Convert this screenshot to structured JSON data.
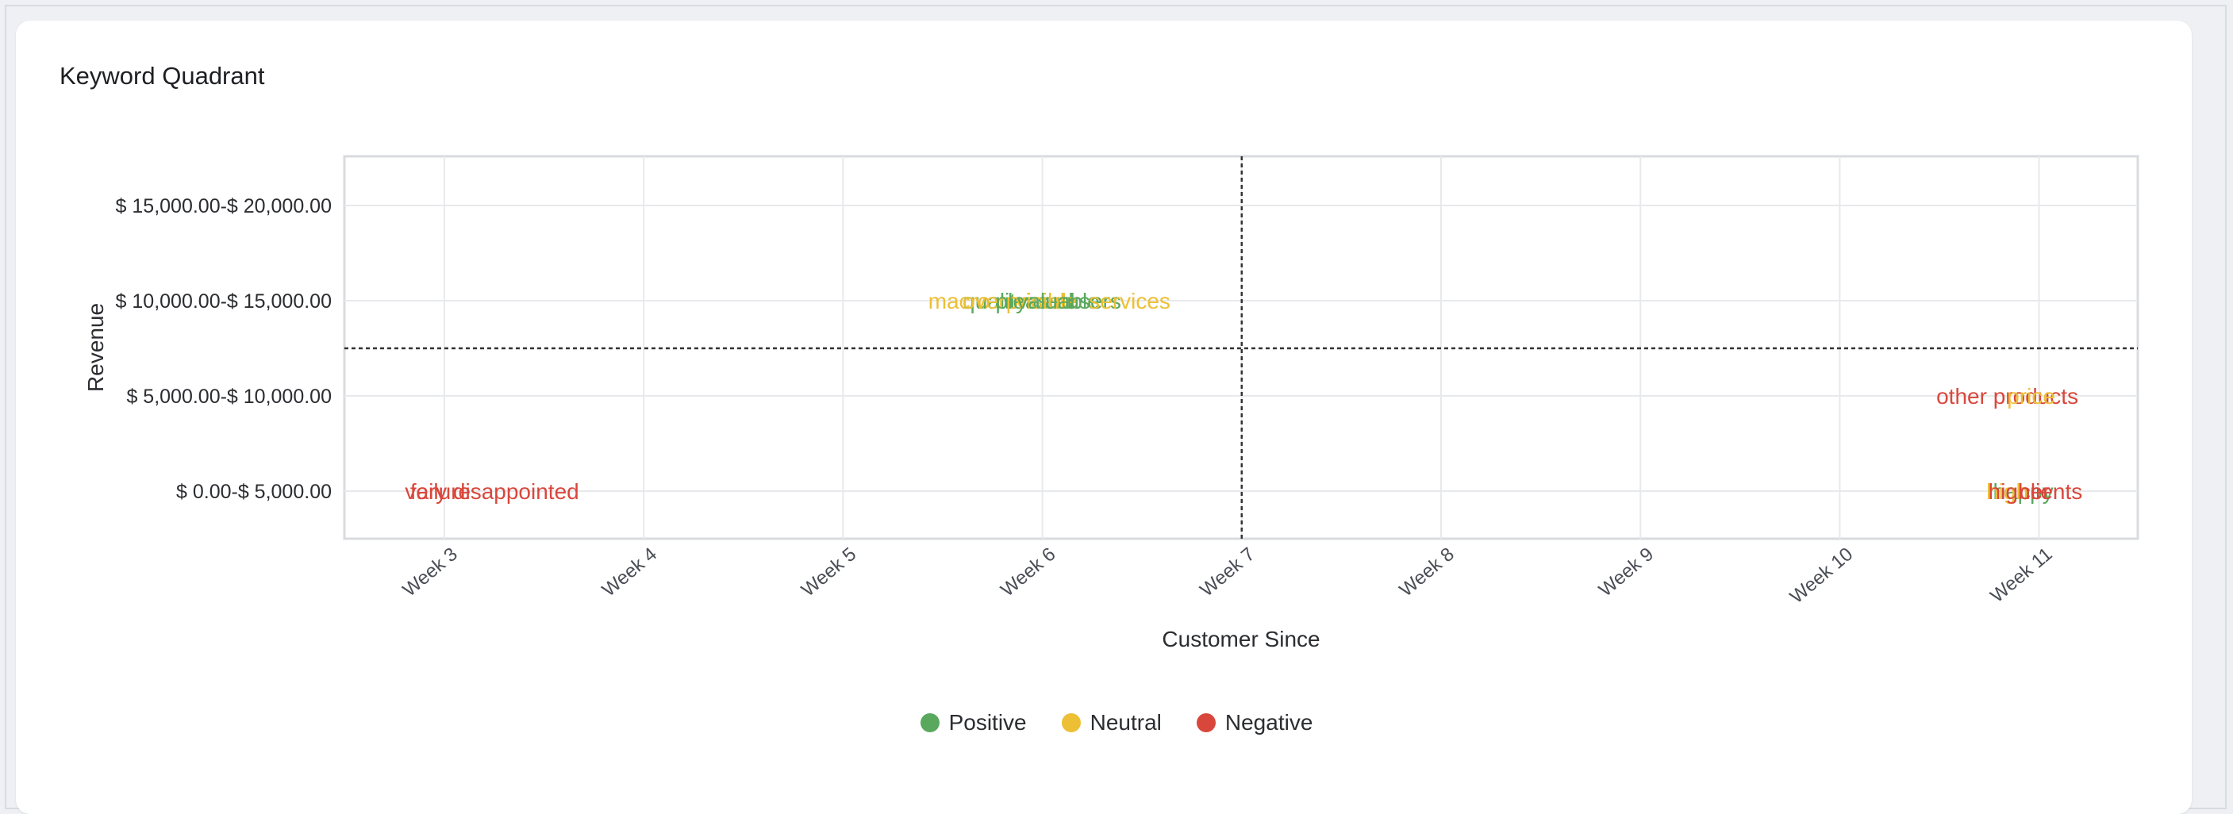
{
  "card": {
    "title": "Keyword Quadrant"
  },
  "chart_data": {
    "type": "scatter",
    "title": "Keyword Quadrant",
    "xlabel": "Customer Since",
    "ylabel": "Revenue",
    "x_categories": [
      "Week 3",
      "Week 4",
      "Week 5",
      "Week 6",
      "Week 7",
      "Week 8",
      "Week 9",
      "Week 10",
      "Week 11"
    ],
    "y_categories": [
      "$ 0.00-$ 5,000.00",
      "$ 5,000.00-$ 10,000.00",
      "$ 10,000.00-$ 15,000.00",
      "$ 15,000.00-$ 20,000.00"
    ],
    "divider": {
      "x": "Week 7",
      "y_between": [
        "$ 5,000.00-$ 10,000.00",
        "$ 10,000.00-$ 15,000.00"
      ]
    },
    "grid": true,
    "legend": {
      "position": "bottom-center",
      "items": [
        {
          "name": "Positive",
          "color": "#5aa85e"
        },
        {
          "name": "Neutral",
          "color": "#ecbf35"
        },
        {
          "name": "Negative",
          "color": "#d9473c"
        }
      ]
    },
    "points": [
      {
        "x": "Week 6",
        "y": "$ 10,000.00-$ 15,000.00",
        "label": "macro",
        "sentiment": "Neutral",
        "offset": -105
      },
      {
        "x": "Week 6",
        "y": "$ 10,000.00-$ 15,000.00",
        "label": "quality",
        "sentiment": "Positive",
        "offset": -60
      },
      {
        "x": "Week 6",
        "y": "$ 10,000.00-$ 15,000.00",
        "label": "overpriced",
        "sentiment": "Neutral",
        "offset": -35
      },
      {
        "x": "Week 6",
        "y": "$ 10,000.00-$ 15,000.00",
        "label": "pleased",
        "sentiment": "Positive",
        "offset": -10
      },
      {
        "x": "Week 6",
        "y": "$ 10,000.00-$ 15,000.00",
        "label": "visible",
        "sentiment": "Neutral",
        "offset": 5
      },
      {
        "x": "Week 6",
        "y": "$ 10,000.00-$ 15,000.00",
        "label": "valuable",
        "sentiment": "Positive",
        "offset": 20
      },
      {
        "x": "Week 6",
        "y": "$ 10,000.00-$ 15,000.00",
        "label": "users",
        "sentiment": "Positive",
        "offset": 65
      },
      {
        "x": "Week 6",
        "y": "$ 10,000.00-$ 15,000.00",
        "label": "services",
        "sentiment": "Neutral",
        "offset": 110
      },
      {
        "x": "Week 11",
        "y": "$ 5,000.00-$ 10,000.00",
        "label": "other products",
        "sentiment": "Negative",
        "offset": -40
      },
      {
        "x": "Week 11",
        "y": "$ 5,000.00-$ 10,000.00",
        "label": "price",
        "sentiment": "Neutral",
        "offset": -10
      },
      {
        "x": "Week 3",
        "y": "$ 0.00-$ 5,000.00",
        "label": "very disappointed",
        "sentiment": "Negative",
        "offset": 60
      },
      {
        "x": "Week 3",
        "y": "$ 0.00-$ 5,000.00",
        "label": "failure",
        "sentiment": "Negative",
        "offset": -5
      },
      {
        "x": "Week 11",
        "y": "$ 0.00-$ 5,000.00",
        "label": "happy",
        "sentiment": "Positive",
        "offset": -20
      },
      {
        "x": "Week 11",
        "y": "$ 0.00-$ 5,000.00",
        "label": "high",
        "sentiment": "Neutral",
        "offset": -40
      },
      {
        "x": "Week 11",
        "y": "$ 0.00-$ 5,000.00",
        "label": "clients",
        "sentiment": "Negative",
        "offset": 15
      },
      {
        "x": "Week 11",
        "y": "$ 0.00-$ 5,000.00",
        "label": "higher",
        "sentiment": "Negative",
        "offset": -25
      }
    ]
  }
}
